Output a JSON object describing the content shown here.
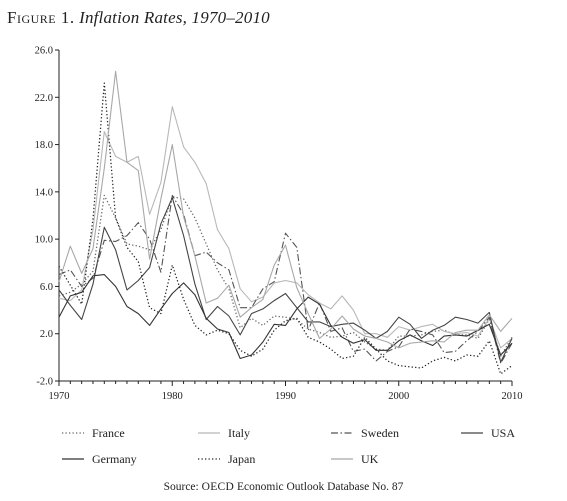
{
  "figure": {
    "label": "Figure 1.",
    "title": "Inflation Rates, 1970–2010",
    "source_prefix": "Source:",
    "source_org": "OECD",
    "source_rest": "Economic Outlook Database No. 87"
  },
  "chart_data": {
    "type": "line",
    "title": "Inflation Rates, 1970–2010",
    "xlabel": "",
    "ylabel": "",
    "xlim": [
      1970,
      2010
    ],
    "ylim": [
      -2.0,
      26.0
    ],
    "x_ticks": [
      1970,
      1980,
      1990,
      2000,
      2010
    ],
    "y_ticks": [
      -2.0,
      2.0,
      6.0,
      10.0,
      14.0,
      18.0,
      22.0,
      26.0
    ],
    "y_tick_labels": [
      "-2.0",
      "2.0",
      "6.0",
      "10.0",
      "14.0",
      "18.0",
      "22.0",
      "26.0"
    ],
    "grid": false,
    "legend_position": "bottom",
    "x": [
      1970,
      1971,
      1972,
      1973,
      1974,
      1975,
      1976,
      1977,
      1978,
      1979,
      1980,
      1981,
      1982,
      1983,
      1984,
      1985,
      1986,
      1987,
      1988,
      1989,
      1990,
      1991,
      1992,
      1993,
      1994,
      1995,
      1996,
      1997,
      1998,
      1999,
      2000,
      2001,
      2002,
      2003,
      2004,
      2005,
      2006,
      2007,
      2008,
      2009,
      2010
    ],
    "series": [
      {
        "name": "France",
        "style": "dotted",
        "color": "#666666",
        "values": [
          5.2,
          5.5,
          6.2,
          7.3,
          13.7,
          11.8,
          9.6,
          9.4,
          9.1,
          10.8,
          13.6,
          13.4,
          11.8,
          9.6,
          7.4,
          5.8,
          2.5,
          3.3,
          2.7,
          3.5,
          3.4,
          3.2,
          2.4,
          2.1,
          1.7,
          1.8,
          2.1,
          1.3,
          0.7,
          0.6,
          1.8,
          1.8,
          1.9,
          2.2,
          2.3,
          1.9,
          1.9,
          1.6,
          3.2,
          0.1,
          1.7
        ]
      },
      {
        "name": "Italy",
        "style": "solid",
        "color": "#b8b8b8",
        "values": [
          5.0,
          4.8,
          5.7,
          10.8,
          19.1,
          17.0,
          16.5,
          17.0,
          12.1,
          14.8,
          21.2,
          17.8,
          16.5,
          14.7,
          10.8,
          9.2,
          5.8,
          4.7,
          5.1,
          6.3,
          6.5,
          6.3,
          5.3,
          4.6,
          4.1,
          5.2,
          4.0,
          2.0,
          2.0,
          1.7,
          2.6,
          2.3,
          2.6,
          2.8,
          2.2,
          2.0,
          2.1,
          1.8,
          3.3,
          0.8,
          1.6
        ]
      },
      {
        "name": "Sweden",
        "style": "dashdot",
        "color": "#555555",
        "values": [
          7.0,
          7.4,
          6.0,
          6.7,
          9.9,
          9.8,
          10.3,
          11.4,
          10.0,
          7.2,
          13.7,
          12.1,
          8.6,
          8.9,
          8.0,
          7.4,
          4.2,
          4.2,
          5.8,
          6.4,
          10.5,
          9.3,
          2.3,
          4.6,
          2.2,
          2.5,
          0.5,
          0.7,
          -0.3,
          0.5,
          0.9,
          2.4,
          2.2,
          1.9,
          0.4,
          0.5,
          1.4,
          2.2,
          3.4,
          -0.5,
          1.2
        ]
      },
      {
        "name": "USA",
        "style": "solid",
        "color": "#444444",
        "values": [
          5.7,
          4.4,
          3.2,
          6.2,
          11.0,
          9.1,
          5.7,
          6.5,
          7.6,
          11.3,
          13.5,
          10.3,
          6.2,
          3.2,
          4.3,
          3.5,
          1.9,
          3.7,
          4.1,
          4.8,
          5.4,
          4.2,
          3.0,
          3.0,
          2.6,
          2.8,
          2.9,
          2.3,
          1.6,
          2.2,
          3.4,
          2.8,
          1.6,
          2.3,
          2.7,
          3.4,
          3.2,
          2.9,
          3.8,
          -0.4,
          1.6
        ]
      },
      {
        "name": "Germany",
        "style": "solid",
        "color": "#333333",
        "values": [
          3.4,
          5.2,
          5.5,
          6.9,
          7.0,
          6.0,
          4.3,
          3.7,
          2.7,
          4.1,
          5.4,
          6.3,
          5.3,
          3.3,
          2.4,
          2.1,
          -0.1,
          0.2,
          1.3,
          2.8,
          2.7,
          4.1,
          5.1,
          4.5,
          2.7,
          1.7,
          1.2,
          1.5,
          0.6,
          0.6,
          1.4,
          1.9,
          1.4,
          1.0,
          1.8,
          1.9,
          1.8,
          2.3,
          2.8,
          0.2,
          1.2
        ]
      },
      {
        "name": "Japan",
        "style": "dotted",
        "color": "#222222",
        "values": [
          7.7,
          6.1,
          4.5,
          11.7,
          23.2,
          11.8,
          9.3,
          8.1,
          4.2,
          3.7,
          7.8,
          4.9,
          2.7,
          1.9,
          2.3,
          2.0,
          0.6,
          0.1,
          0.7,
          2.3,
          3.1,
          3.3,
          1.7,
          1.3,
          0.7,
          -0.1,
          0.1,
          1.7,
          0.7,
          -0.3,
          -0.7,
          -0.8,
          -0.9,
          -0.3,
          0.0,
          -0.3,
          0.2,
          0.1,
          1.4,
          -1.4,
          -0.7
        ]
      },
      {
        "name": "UK",
        "style": "solid",
        "color": "#a8a8a8",
        "values": [
          6.4,
          9.4,
          7.1,
          9.2,
          16.0,
          24.2,
          16.5,
          15.8,
          8.3,
          13.4,
          18.0,
          11.9,
          8.6,
          4.6,
          5.0,
          6.1,
          3.4,
          4.2,
          4.9,
          7.8,
          9.5,
          5.9,
          3.7,
          1.6,
          2.4,
          3.5,
          2.4,
          1.8,
          1.6,
          1.3,
          0.8,
          1.2,
          1.3,
          1.4,
          1.3,
          2.1,
          2.3,
          2.3,
          3.6,
          2.2,
          3.3
        ]
      }
    ]
  }
}
